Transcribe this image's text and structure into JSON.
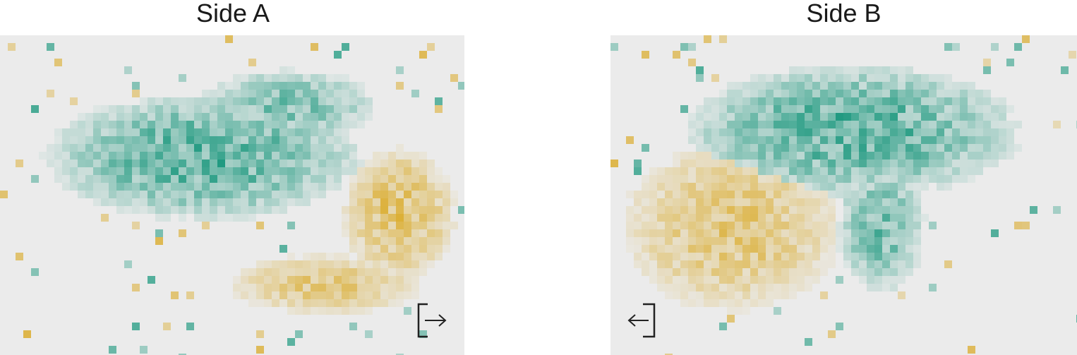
{
  "chart_data": [
    {
      "type": "heatmap",
      "title": "Side A",
      "icon": "exit-right-icon",
      "colors": {
        "positive": "#14957a",
        "negative": "#d8a20f",
        "background": "#ebebeb"
      },
      "grid": false,
      "clusters": [
        {
          "category": "teal",
          "cx": 0.44,
          "cy": 0.38,
          "rx": 0.36,
          "ry": 0.21,
          "strength": 0.8
        },
        {
          "category": "teal",
          "cx": 0.62,
          "cy": 0.22,
          "rx": 0.2,
          "ry": 0.12,
          "strength": 0.6
        },
        {
          "category": "gold",
          "cx": 0.86,
          "cy": 0.56,
          "rx": 0.13,
          "ry": 0.22,
          "strength": 0.7
        },
        {
          "category": "gold",
          "cx": 0.7,
          "cy": 0.78,
          "rx": 0.22,
          "ry": 0.1,
          "strength": 0.55
        }
      ]
    },
    {
      "type": "heatmap",
      "title": "Side B",
      "icon": "exit-left-icon",
      "colors": {
        "positive": "#14957a",
        "negative": "#d8a20f",
        "background": "#ebebeb"
      },
      "grid": false,
      "clusters": [
        {
          "category": "teal",
          "cx": 0.52,
          "cy": 0.3,
          "rx": 0.38,
          "ry": 0.22,
          "strength": 0.8
        },
        {
          "category": "teal",
          "cx": 0.58,
          "cy": 0.6,
          "rx": 0.1,
          "ry": 0.22,
          "strength": 0.65
        },
        {
          "category": "gold",
          "cx": 0.26,
          "cy": 0.6,
          "rx": 0.25,
          "ry": 0.28,
          "strength": 0.6
        }
      ]
    }
  ]
}
